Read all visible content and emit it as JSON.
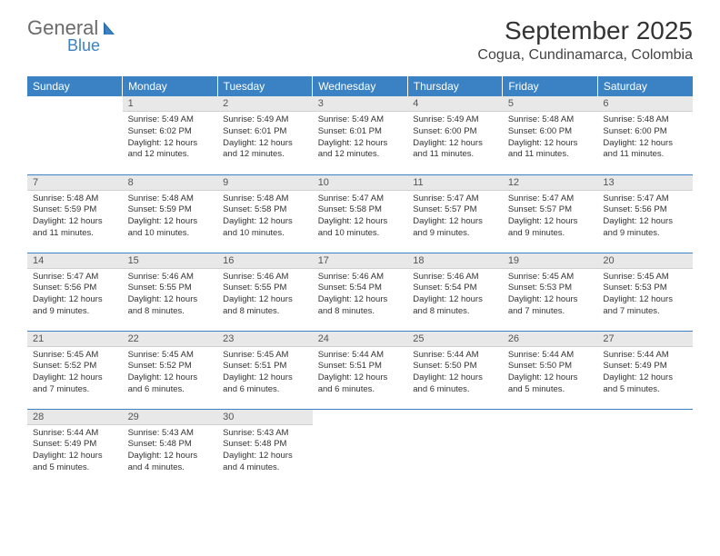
{
  "logo": {
    "general": "General",
    "blue": "Blue"
  },
  "header": {
    "month_title": "September 2025",
    "location": "Cogua, Cundinamarca, Colombia"
  },
  "colors": {
    "header_bg": "#3b82c4",
    "header_text": "#ffffff",
    "daynum_bg": "#e8e8e8",
    "row_border": "#3b82c4",
    "body_text": "#333333",
    "page_bg": "#ffffff"
  },
  "weekdays": [
    "Sunday",
    "Monday",
    "Tuesday",
    "Wednesday",
    "Thursday",
    "Friday",
    "Saturday"
  ],
  "start_offset": 1,
  "days": [
    {
      "n": 1,
      "sunrise": "5:49 AM",
      "sunset": "6:02 PM",
      "daylight": "12 hours and 12 minutes."
    },
    {
      "n": 2,
      "sunrise": "5:49 AM",
      "sunset": "6:01 PM",
      "daylight": "12 hours and 12 minutes."
    },
    {
      "n": 3,
      "sunrise": "5:49 AM",
      "sunset": "6:01 PM",
      "daylight": "12 hours and 12 minutes."
    },
    {
      "n": 4,
      "sunrise": "5:49 AM",
      "sunset": "6:00 PM",
      "daylight": "12 hours and 11 minutes."
    },
    {
      "n": 5,
      "sunrise": "5:48 AM",
      "sunset": "6:00 PM",
      "daylight": "12 hours and 11 minutes."
    },
    {
      "n": 6,
      "sunrise": "5:48 AM",
      "sunset": "6:00 PM",
      "daylight": "12 hours and 11 minutes."
    },
    {
      "n": 7,
      "sunrise": "5:48 AM",
      "sunset": "5:59 PM",
      "daylight": "12 hours and 11 minutes."
    },
    {
      "n": 8,
      "sunrise": "5:48 AM",
      "sunset": "5:59 PM",
      "daylight": "12 hours and 10 minutes."
    },
    {
      "n": 9,
      "sunrise": "5:48 AM",
      "sunset": "5:58 PM",
      "daylight": "12 hours and 10 minutes."
    },
    {
      "n": 10,
      "sunrise": "5:47 AM",
      "sunset": "5:58 PM",
      "daylight": "12 hours and 10 minutes."
    },
    {
      "n": 11,
      "sunrise": "5:47 AM",
      "sunset": "5:57 PM",
      "daylight": "12 hours and 9 minutes."
    },
    {
      "n": 12,
      "sunrise": "5:47 AM",
      "sunset": "5:57 PM",
      "daylight": "12 hours and 9 minutes."
    },
    {
      "n": 13,
      "sunrise": "5:47 AM",
      "sunset": "5:56 PM",
      "daylight": "12 hours and 9 minutes."
    },
    {
      "n": 14,
      "sunrise": "5:47 AM",
      "sunset": "5:56 PM",
      "daylight": "12 hours and 9 minutes."
    },
    {
      "n": 15,
      "sunrise": "5:46 AM",
      "sunset": "5:55 PM",
      "daylight": "12 hours and 8 minutes."
    },
    {
      "n": 16,
      "sunrise": "5:46 AM",
      "sunset": "5:55 PM",
      "daylight": "12 hours and 8 minutes."
    },
    {
      "n": 17,
      "sunrise": "5:46 AM",
      "sunset": "5:54 PM",
      "daylight": "12 hours and 8 minutes."
    },
    {
      "n": 18,
      "sunrise": "5:46 AM",
      "sunset": "5:54 PM",
      "daylight": "12 hours and 8 minutes."
    },
    {
      "n": 19,
      "sunrise": "5:45 AM",
      "sunset": "5:53 PM",
      "daylight": "12 hours and 7 minutes."
    },
    {
      "n": 20,
      "sunrise": "5:45 AM",
      "sunset": "5:53 PM",
      "daylight": "12 hours and 7 minutes."
    },
    {
      "n": 21,
      "sunrise": "5:45 AM",
      "sunset": "5:52 PM",
      "daylight": "12 hours and 7 minutes."
    },
    {
      "n": 22,
      "sunrise": "5:45 AM",
      "sunset": "5:52 PM",
      "daylight": "12 hours and 6 minutes."
    },
    {
      "n": 23,
      "sunrise": "5:45 AM",
      "sunset": "5:51 PM",
      "daylight": "12 hours and 6 minutes."
    },
    {
      "n": 24,
      "sunrise": "5:44 AM",
      "sunset": "5:51 PM",
      "daylight": "12 hours and 6 minutes."
    },
    {
      "n": 25,
      "sunrise": "5:44 AM",
      "sunset": "5:50 PM",
      "daylight": "12 hours and 6 minutes."
    },
    {
      "n": 26,
      "sunrise": "5:44 AM",
      "sunset": "5:50 PM",
      "daylight": "12 hours and 5 minutes."
    },
    {
      "n": 27,
      "sunrise": "5:44 AM",
      "sunset": "5:49 PM",
      "daylight": "12 hours and 5 minutes."
    },
    {
      "n": 28,
      "sunrise": "5:44 AM",
      "sunset": "5:49 PM",
      "daylight": "12 hours and 5 minutes."
    },
    {
      "n": 29,
      "sunrise": "5:43 AM",
      "sunset": "5:48 PM",
      "daylight": "12 hours and 4 minutes."
    },
    {
      "n": 30,
      "sunrise": "5:43 AM",
      "sunset": "5:48 PM",
      "daylight": "12 hours and 4 minutes."
    }
  ],
  "labels": {
    "sunrise": "Sunrise:",
    "sunset": "Sunset:",
    "daylight": "Daylight:"
  }
}
